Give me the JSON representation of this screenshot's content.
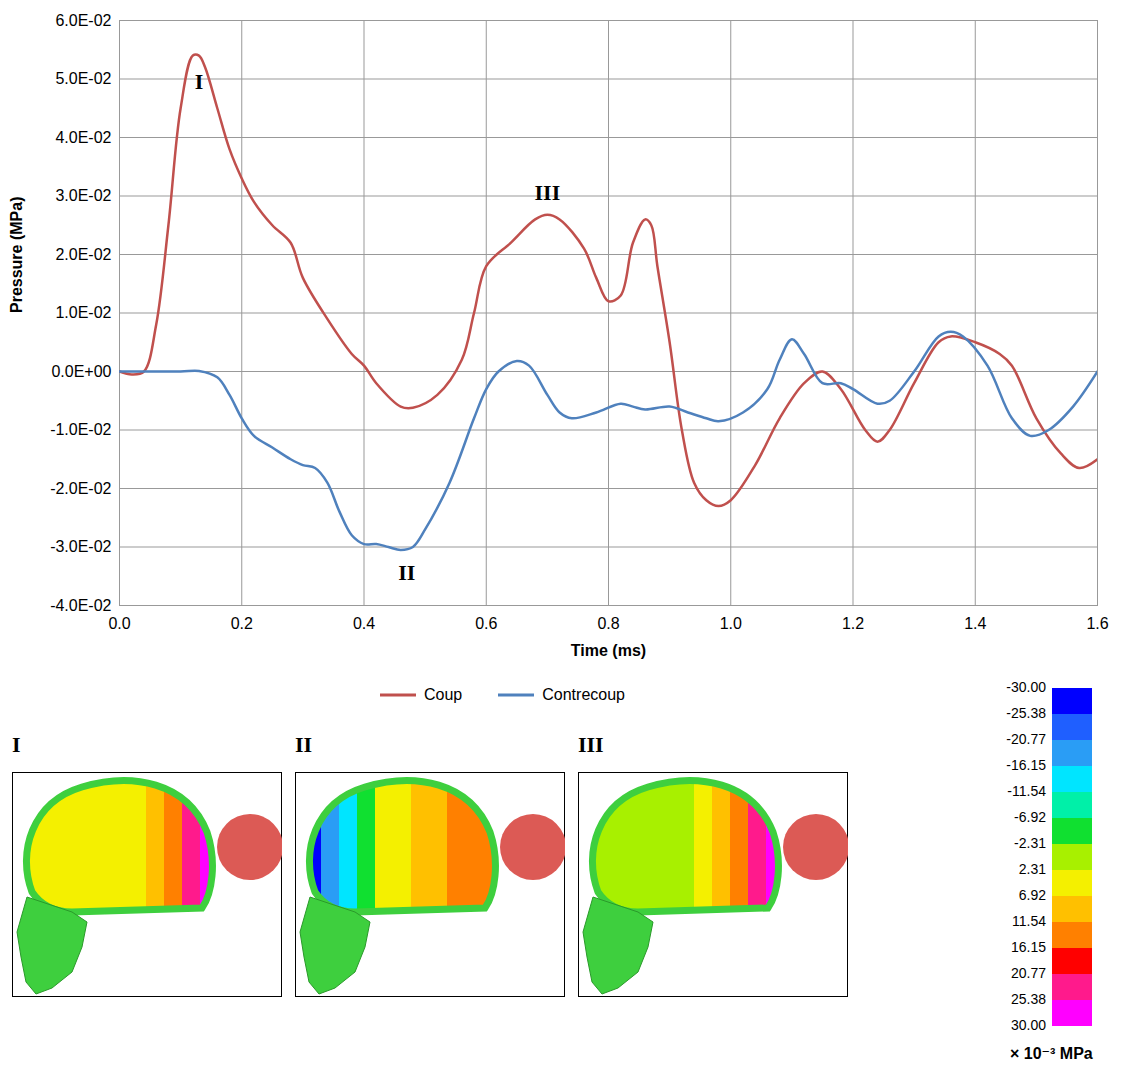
{
  "chart_data": {
    "type": "line",
    "xlabel": "Time (ms)",
    "ylabel": "Pressure (MPa)",
    "xlim": [
      0,
      1.6
    ],
    "ylim": [
      -0.04,
      0.06
    ],
    "xticks": [
      {
        "value": 0,
        "label": "0.0"
      },
      0.2,
      0.4,
      0.6,
      0.8,
      {
        "value": 1,
        "label": "1.0"
      },
      1.2,
      1.4,
      1.6
    ],
    "yticks": [
      {
        "value": -0.04,
        "label": "-4.0E-02"
      },
      {
        "value": -0.03,
        "label": "-3.0E-02"
      },
      {
        "value": -0.02,
        "label": "-2.0E-02"
      },
      {
        "value": -0.01,
        "label": "-1.0E-02"
      },
      {
        "value": 0,
        "label": "0.0E+00"
      },
      {
        "value": 0.01,
        "label": "1.0E-02"
      },
      {
        "value": 0.02,
        "label": "2.0E-02"
      },
      {
        "value": 0.03,
        "label": "3.0E-02"
      },
      {
        "value": 0.04,
        "label": "4.0E-02"
      },
      {
        "value": 0.05,
        "label": "5.0E-02"
      },
      {
        "value": 0.06,
        "label": "6.0E-02"
      }
    ],
    "grid": true,
    "legend": "bottom",
    "series": [
      {
        "name": "Coup",
        "color": "#c0504d",
        "x": [
          0,
          0.02,
          0.04,
          0.06,
          0.08,
          0.1,
          0.12,
          0.13,
          0.14,
          0.16,
          0.18,
          0.2,
          0.22,
          0.25,
          0.28,
          0.3,
          0.34,
          0.38,
          0.4,
          0.42,
          0.46,
          0.48,
          0.52,
          0.56,
          0.58,
          0.6,
          0.64,
          0.68,
          0.7,
          0.72,
          0.76,
          0.78,
          0.8,
          0.82,
          0.84,
          0.86,
          0.87,
          0.88,
          0.9,
          0.92,
          0.94,
          0.96,
          0.98,
          1.0,
          1.04,
          1.08,
          1.12,
          1.15,
          1.18,
          1.22,
          1.24,
          1.26,
          1.3,
          1.34,
          1.36,
          1.4,
          1.44,
          1.46,
          1.5,
          1.54,
          1.57,
          1.6
        ],
        "values": [
          0,
          -0.0005,
          0,
          0.008,
          0.025,
          0.045,
          0.054,
          0.054,
          0.052,
          0.045,
          0.038,
          0.033,
          0.029,
          0.025,
          0.022,
          0.016,
          0.009,
          0.003,
          0.001,
          -0.002,
          -0.006,
          -0.0062,
          -0.004,
          0.002,
          0.01,
          0.018,
          0.022,
          0.026,
          0.0268,
          0.026,
          0.021,
          0.016,
          0.012,
          0.013,
          0.022,
          0.026,
          0.025,
          0.018,
          0.005,
          -0.01,
          -0.019,
          -0.022,
          -0.023,
          -0.022,
          -0.016,
          -0.008,
          -0.002,
          0,
          -0.003,
          -0.01,
          -0.012,
          -0.01,
          -0.002,
          0.005,
          0.006,
          0.005,
          0.003,
          0.001,
          -0.008,
          -0.014,
          -0.0165,
          -0.015
        ]
      },
      {
        "name": "Contrecoup",
        "color": "#4f81bd",
        "x": [
          0,
          0.1,
          0.13,
          0.16,
          0.18,
          0.2,
          0.22,
          0.25,
          0.28,
          0.3,
          0.32,
          0.34,
          0.36,
          0.38,
          0.4,
          0.42,
          0.44,
          0.46,
          0.48,
          0.5,
          0.54,
          0.58,
          0.6,
          0.62,
          0.65,
          0.67,
          0.7,
          0.72,
          0.74,
          0.78,
          0.82,
          0.84,
          0.86,
          0.9,
          0.93,
          0.96,
          0.98,
          1.02,
          1.06,
          1.08,
          1.1,
          1.12,
          1.15,
          1.18,
          1.2,
          1.24,
          1.26,
          1.3,
          1.34,
          1.36,
          1.38,
          1.42,
          1.46,
          1.49,
          1.52,
          1.56,
          1.6
        ],
        "values": [
          0,
          0,
          0.0001,
          -0.001,
          -0.004,
          -0.008,
          -0.011,
          -0.013,
          -0.015,
          -0.016,
          -0.0165,
          -0.019,
          -0.024,
          -0.028,
          -0.0295,
          -0.0295,
          -0.03,
          -0.0305,
          -0.03,
          -0.027,
          -0.019,
          -0.008,
          -0.003,
          0,
          0.0018,
          0.001,
          -0.004,
          -0.007,
          -0.008,
          -0.007,
          -0.0055,
          -0.006,
          -0.0065,
          -0.006,
          -0.007,
          -0.008,
          -0.0085,
          -0.007,
          -0.003,
          0.002,
          0.0055,
          0.003,
          -0.002,
          -0.002,
          -0.003,
          -0.0055,
          -0.005,
          0,
          0.006,
          0.0068,
          0.006,
          0.001,
          -0.008,
          -0.011,
          -0.01,
          -0.006,
          0
        ]
      }
    ],
    "annotations": [
      {
        "text": "I",
        "x": 0.13,
        "y": 0.0495
      },
      {
        "text": "II",
        "x": 0.47,
        "y": -0.0345
      },
      {
        "text": "III",
        "x": 0.7,
        "y": 0.0305
      }
    ]
  },
  "panels": [
    {
      "label": "I",
      "pressure_profile": [
        4,
        4,
        4,
        4,
        4,
        5,
        6,
        8,
        12,
        22,
        30
      ]
    },
    {
      "label": "II",
      "pressure_profile": [
        -27,
        -20,
        -12,
        -4,
        3,
        6,
        8,
        10,
        12,
        14,
        16
      ]
    },
    {
      "label": "III",
      "pressure_profile": [
        -2,
        -2,
        -2,
        -2,
        -2,
        2,
        6,
        10,
        14,
        22,
        30
      ]
    }
  ],
  "colorbar": {
    "ticks": [
      {
        "value": -30,
        "label": "-30.00"
      },
      -25.38,
      -20.77,
      -16.15,
      -11.54,
      -6.92,
      -2.31,
      2.31,
      6.92,
      11.54,
      16.15,
      20.77,
      25.38,
      {
        "value": 30,
        "label": "30.00"
      }
    ],
    "colors": [
      "#0000ff",
      "#1f5fff",
      "#2a9df5",
      "#00e5ff",
      "#00f0a8",
      "#10e030",
      "#a8f000",
      "#f4f000",
      "#ffc000",
      "#ff8000",
      "#ff0000",
      "#ff1a8c",
      "#ff00ff"
    ],
    "label": "× 10⁻³ MPa"
  }
}
